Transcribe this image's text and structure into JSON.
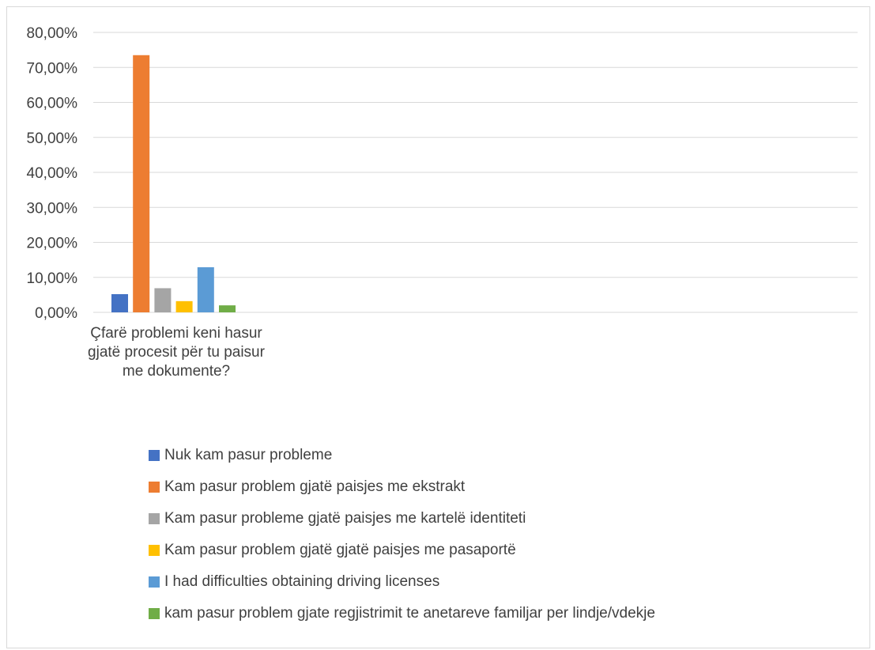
{
  "chart_data": {
    "type": "bar",
    "categories": [
      "Çfarë problemi keni hasur gjatë procesit për tu paisur me dokumente?"
    ],
    "series": [
      {
        "name": "Nuk kam pasur probleme",
        "values": [
          5.2
        ],
        "color": "#4472c4"
      },
      {
        "name": "Kam pasur problem gjatë paisjes me ekstrakt",
        "values": [
          73.5
        ],
        "color": "#ed7d31"
      },
      {
        "name": "Kam pasur probleme gjatë paisjes me kartelë identiteti",
        "values": [
          6.9
        ],
        "color": "#a5a5a5"
      },
      {
        "name": "Kam pasur problem gjatë gjatë paisjes me pasaportë",
        "values": [
          3.2
        ],
        "color": "#ffc000"
      },
      {
        "name": "I had difficulties obtaining driving licenses",
        "values": [
          12.9
        ],
        "color": "#5b9bd5"
      },
      {
        "name": "kam pasur problem gjate regjistrimit te anetareve familjar per lindje/vdekje",
        "values": [
          2.0
        ],
        "color": "#70ad47"
      }
    ],
    "y_ticks": [
      "0,00%",
      "10,00%",
      "20,00%",
      "30,00%",
      "40,00%",
      "50,00%",
      "60,00%",
      "70,00%",
      "80,00%"
    ],
    "ylim": [
      0,
      80
    ],
    "grid": true,
    "legend_position": "bottom"
  }
}
